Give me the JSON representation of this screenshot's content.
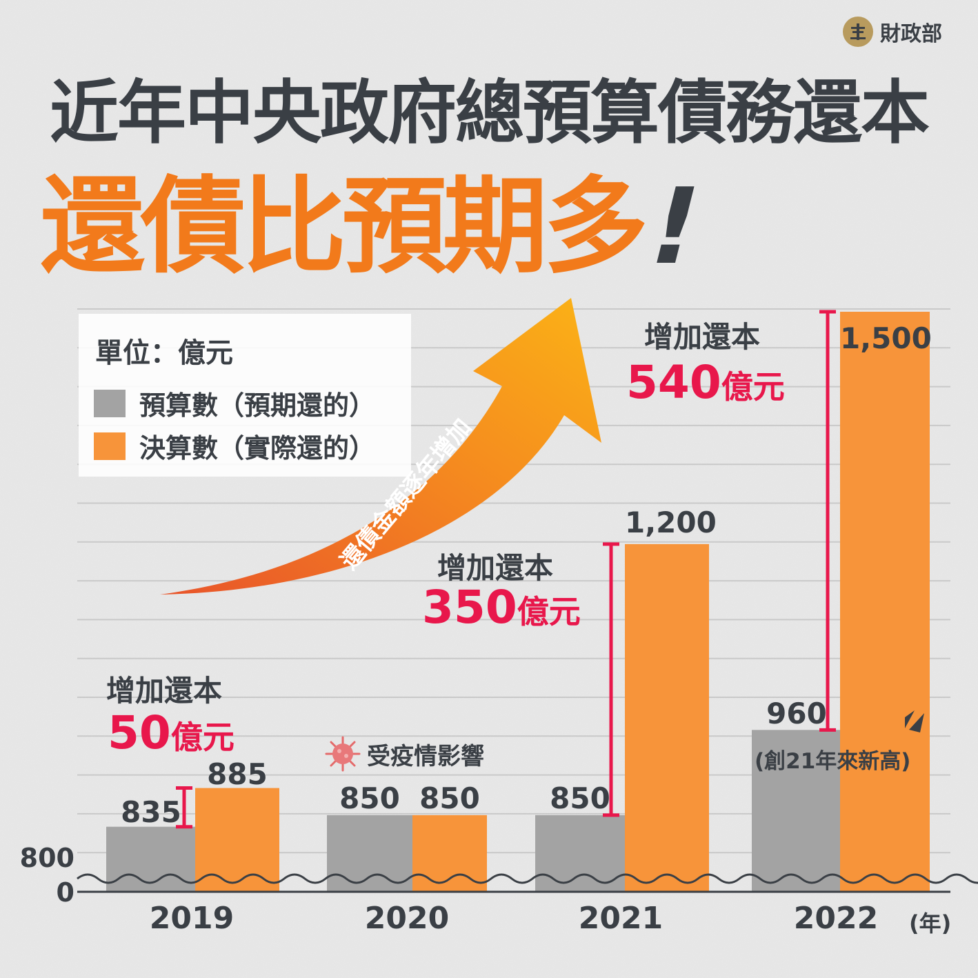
{
  "header": {
    "org_name": "財政部",
    "title": "近年中央政府總預算債務還本",
    "subtitle": "還債比預期多",
    "subtitle_mark": "!"
  },
  "legend": {
    "unit": "單位：億元",
    "items": [
      {
        "label": "預算數（預期還的）",
        "color": "#a3a3a3"
      },
      {
        "label": "決算數（實際還的）",
        "color": "#f7943a"
      }
    ]
  },
  "arrow_label": "還債金額逐年增加",
  "covid_note": "受疫情影響",
  "increases": [
    {
      "label": "增加還本",
      "amount": "50",
      "unit": "億元"
    },
    {
      "label": "增加還本",
      "amount": "350",
      "unit": "億元"
    },
    {
      "label": "增加還本",
      "amount": "540",
      "unit": "億元"
    }
  ],
  "annotation_2022": "(創21年來新高)",
  "x_unit": "(年)",
  "chart_data": {
    "type": "bar",
    "categories": [
      "2019",
      "2020",
      "2021",
      "2022"
    ],
    "series": [
      {
        "name": "預算數（預期還的）",
        "values": [
          835,
          850,
          850,
          960
        ],
        "labels": [
          "835",
          "850",
          "850",
          "960"
        ]
      },
      {
        "name": "決算數（實際還的）",
        "values": [
          885,
          850,
          1200,
          1500
        ],
        "labels": [
          "885",
          "850",
          "1,200",
          "1,500"
        ]
      }
    ],
    "yticks": [
      "800",
      "0"
    ],
    "axis_break": true,
    "grid": true,
    "legend_position": "top-left"
  },
  "colors": {
    "budget": "#a3a3a3",
    "actual": "#f7943a",
    "accent": "#e8174b",
    "text": "#3a3f45",
    "title_orange": "#f27a1b"
  }
}
